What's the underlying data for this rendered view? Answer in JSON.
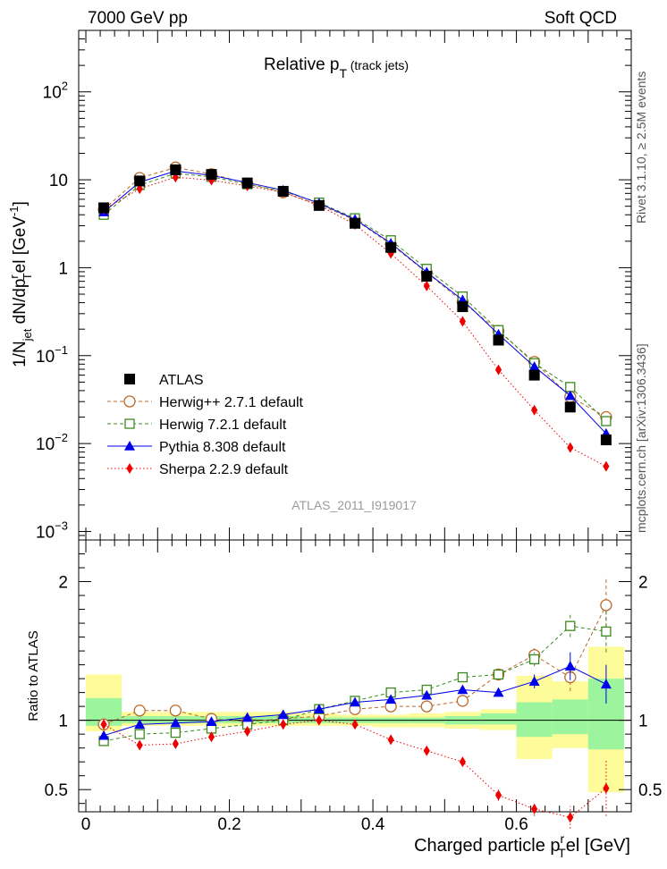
{
  "header": {
    "left": "7000 GeV pp",
    "right": "Soft QCD"
  },
  "side": {
    "rivet": "Rivet 3.1.10,  ≥ 2.5M events",
    "mcplots": "mcplots.cern.ch [arXiv:1306.3436]"
  },
  "chart_data": [
    {
      "type": "scatter",
      "panel": "main",
      "title": "Relative p",
      "title_sub": "T",
      "title_suffix": " (track jets)",
      "ylabel": "1/N",
      "ylabel_sub1": "jet",
      "ylabel_mid": " dN/dp",
      "ylabel_sup": "r",
      "ylabel_sub2": "T",
      "ylabel_end": "el [GeV",
      "ylabel_sup2": "-1",
      "ylabel_close": "]",
      "watermark": "ATLAS_2011_I919017",
      "yscale": "log",
      "ylim": [
        0.0008,
        500
      ],
      "xlim": [
        -0.01,
        0.76
      ],
      "ytick_labels": [
        {
          "v": 0.001,
          "base": "10",
          "exp": "−3"
        },
        {
          "v": 0.01,
          "base": "10",
          "exp": "−2"
        },
        {
          "v": 0.1,
          "base": "10",
          "exp": "−1"
        },
        {
          "v": 1,
          "base": "1",
          "exp": ""
        },
        {
          "v": 10,
          "base": "10",
          "exp": ""
        },
        {
          "v": 100,
          "base": "10",
          "exp": "2"
        }
      ],
      "x": [
        0.025,
        0.075,
        0.125,
        0.175,
        0.225,
        0.275,
        0.325,
        0.375,
        0.425,
        0.475,
        0.525,
        0.575,
        0.625,
        0.675,
        0.725
      ],
      "series": [
        {
          "name": "ATLAS",
          "color": "#000000",
          "marker": "square-filled",
          "line": "none",
          "values": [
            4.8,
            9.7,
            13.0,
            11.5,
            9.2,
            7.4,
            5.1,
            3.2,
            1.7,
            0.8,
            0.36,
            0.15,
            0.06,
            0.026,
            0.011
          ]
        },
        {
          "name": "Herwig++ 2.7.1 default",
          "color": "#b8692e",
          "marker": "circle-open",
          "line": "dashed",
          "values": [
            4.6,
            10.5,
            13.8,
            11.6,
            9.1,
            7.2,
            5.2,
            3.5,
            1.85,
            0.88,
            0.41,
            0.19,
            0.085,
            0.034,
            0.02
          ]
        },
        {
          "name": "Herwig 7.2.1 default",
          "color": "#3b8a1e",
          "marker": "square-open",
          "line": "dashed",
          "values": [
            4.0,
            8.7,
            11.8,
            10.8,
            8.9,
            7.4,
            5.5,
            3.65,
            2.05,
            0.97,
            0.47,
            0.195,
            0.082,
            0.044,
            0.018
          ]
        },
        {
          "name": "Pythia 8.308 default",
          "color": "#0000ee",
          "marker": "triangle-filled",
          "line": "solid",
          "values": [
            4.3,
            9.4,
            12.6,
            11.2,
            9.3,
            7.6,
            5.4,
            3.55,
            1.9,
            0.89,
            0.43,
            0.175,
            0.075,
            0.035,
            0.013
          ]
        },
        {
          "name": "Sherpa 2.2.9 default",
          "color": "#ee0000",
          "marker": "diamond-filled",
          "line": "dotted",
          "values": [
            4.6,
            7.9,
            10.7,
            9.9,
            8.5,
            7.2,
            5.1,
            3.1,
            1.45,
            0.62,
            0.245,
            0.069,
            0.024,
            0.009,
            0.0055
          ]
        }
      ]
    },
    {
      "type": "scatter",
      "panel": "ratio",
      "ylabel": "Ratio to ATLAS",
      "xlabel": "Charged particle p",
      "xlabel_sub": "T",
      "xlabel_sup": "r",
      "xlabel_end": "el [GeV]",
      "ylim": [
        0.34,
        2.3
      ],
      "xlim": [
        -0.01,
        0.76
      ],
      "yticks": [
        0.5,
        1,
        2
      ],
      "ytick_labels": [
        "0.5",
        "1",
        "2"
      ],
      "xticks": [
        0,
        0.2,
        0.4,
        0.6
      ],
      "xtick_labels": [
        "0",
        "0.2",
        "0.4",
        "0.6"
      ],
      "x": [
        0.025,
        0.075,
        0.125,
        0.175,
        0.225,
        0.275,
        0.325,
        0.375,
        0.425,
        0.475,
        0.525,
        0.575,
        0.625,
        0.675,
        0.725
      ],
      "band_total": [
        [
          0.92,
          1.33
        ],
        [
          0.96,
          1.06
        ],
        [
          0.96,
          1.06
        ],
        [
          0.96,
          1.06
        ],
        [
          0.96,
          1.06
        ],
        [
          0.96,
          1.06
        ],
        [
          0.96,
          1.05
        ],
        [
          0.96,
          1.04
        ],
        [
          0.95,
          1.04
        ],
        [
          0.95,
          1.05
        ],
        [
          0.94,
          1.06
        ],
        [
          0.93,
          1.08
        ],
        [
          0.72,
          1.32
        ],
        [
          0.8,
          1.28
        ],
        [
          0.48,
          1.53
        ]
      ],
      "band_stat": [
        [
          0.96,
          1.16
        ],
        [
          0.98,
          1.03
        ],
        [
          0.98,
          1.03
        ],
        [
          0.98,
          1.03
        ],
        [
          0.98,
          1.03
        ],
        [
          0.98,
          1.03
        ],
        [
          0.98,
          1.02
        ],
        [
          0.98,
          1.02
        ],
        [
          0.98,
          1.02
        ],
        [
          0.98,
          1.02
        ],
        [
          0.97,
          1.03
        ],
        [
          0.97,
          1.05
        ],
        [
          0.88,
          1.13
        ],
        [
          0.9,
          1.15
        ],
        [
          0.79,
          1.3
        ]
      ],
      "series": [
        {
          "name": "Herwig++ 2.7.1 default",
          "color": "#b8692e",
          "marker": "circle-open",
          "line": "dashed",
          "values": [
            0.97,
            1.07,
            1.07,
            1.01,
            0.99,
            1.01,
            1.03,
            1.08,
            1.1,
            1.1,
            1.14,
            1.33,
            1.47,
            1.31,
            1.83
          ],
          "err": [
            0.02,
            0.01,
            0.01,
            0.01,
            0.01,
            0.01,
            0.01,
            0.01,
            0.01,
            0.02,
            0.02,
            0.03,
            0.05,
            0.1,
            0.2
          ]
        },
        {
          "name": "Herwig 7.2.1 default",
          "color": "#3b8a1e",
          "marker": "square-open",
          "line": "dashed",
          "values": [
            0.85,
            0.9,
            0.91,
            0.94,
            0.97,
            1.0,
            1.08,
            1.14,
            1.2,
            1.22,
            1.31,
            1.33,
            1.44,
            1.68,
            1.64
          ],
          "err": [
            0.02,
            0.01,
            0.01,
            0.01,
            0.01,
            0.01,
            0.01,
            0.01,
            0.01,
            0.02,
            0.02,
            0.03,
            0.05,
            0.08,
            0.15
          ]
        },
        {
          "name": "Pythia 8.308 default",
          "color": "#0000ee",
          "marker": "triangle-filled",
          "line": "solid",
          "values": [
            0.89,
            0.97,
            0.98,
            0.99,
            1.02,
            1.04,
            1.08,
            1.13,
            1.15,
            1.18,
            1.22,
            1.2,
            1.28,
            1.39,
            1.26
          ],
          "err": [
            0.02,
            0.01,
            0.01,
            0.01,
            0.01,
            0.01,
            0.01,
            0.01,
            0.01,
            0.02,
            0.02,
            0.03,
            0.05,
            0.1,
            0.14
          ]
        },
        {
          "name": "Sherpa 2.2.9 default",
          "color": "#ee0000",
          "marker": "diamond-filled",
          "line": "dotted",
          "values": [
            0.97,
            0.82,
            0.83,
            0.88,
            0.92,
            0.97,
            1.0,
            0.97,
            0.86,
            0.78,
            0.7,
            0.46,
            0.36,
            0.3,
            0.51
          ],
          "err": [
            0.02,
            0.01,
            0.01,
            0.01,
            0.01,
            0.01,
            0.01,
            0.01,
            0.01,
            0.02,
            0.03,
            0.04,
            0.05,
            0.08,
            0.2
          ]
        }
      ]
    }
  ]
}
